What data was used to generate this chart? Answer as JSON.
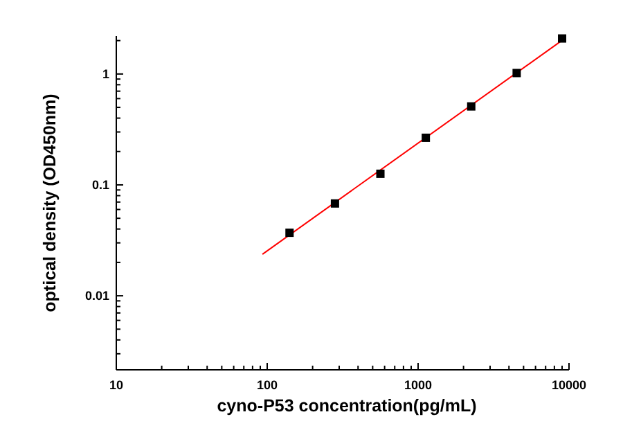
{
  "chart_data": {
    "type": "scatter",
    "xlabel": "cyno-P53 concentration(pg/mL)",
    "ylabel": "optical density (OD450nm)",
    "log": "xy",
    "xlim": [
      10,
      10000
    ],
    "ylim": [
      0.00215,
      2.2
    ],
    "xticks": [
      10,
      {
        "value": 20,
        "label": null
      },
      {
        "value": 30,
        "label": null
      },
      {
        "value": 40,
        "label": null
      },
      {
        "value": 50,
        "label": null
      },
      {
        "value": 60,
        "label": null
      },
      {
        "value": 70,
        "label": null
      },
      {
        "value": 80,
        "label": null
      },
      {
        "value": 90,
        "label": null
      },
      100,
      {
        "value": 200,
        "label": null
      },
      {
        "value": 300,
        "label": null
      },
      {
        "value": 400,
        "label": null
      },
      {
        "value": 500,
        "label": null
      },
      {
        "value": 600,
        "label": null
      },
      {
        "value": 700,
        "label": null
      },
      {
        "value": 800,
        "label": null
      },
      {
        "value": 900,
        "label": null
      },
      1000,
      {
        "value": 2000,
        "label": null
      },
      {
        "value": 3000,
        "label": null
      },
      {
        "value": 4000,
        "label": null
      },
      {
        "value": 5000,
        "label": null
      },
      {
        "value": 6000,
        "label": null
      },
      {
        "value": 7000,
        "label": null
      },
      {
        "value": 8000,
        "label": null
      },
      {
        "value": 9000,
        "label": null
      },
      10000
    ],
    "yticks": [
      {
        "value": 0.003,
        "label": null
      },
      {
        "value": 0.004,
        "label": null
      },
      {
        "value": 0.005,
        "label": null
      },
      {
        "value": 0.006,
        "label": null
      },
      {
        "value": 0.007,
        "label": null
      },
      {
        "value": 0.008,
        "label": null
      },
      {
        "value": 0.009,
        "label": null
      },
      0.01,
      {
        "value": 0.02,
        "label": null
      },
      {
        "value": 0.03,
        "label": null
      },
      {
        "value": 0.04,
        "label": null
      },
      {
        "value": 0.05,
        "label": null
      },
      {
        "value": 0.06,
        "label": null
      },
      {
        "value": 0.07,
        "label": null
      },
      {
        "value": 0.08,
        "label": null
      },
      {
        "value": 0.09,
        "label": null
      },
      0.1,
      {
        "value": 0.2,
        "label": null
      },
      {
        "value": 0.3,
        "label": null
      },
      {
        "value": 0.4,
        "label": null
      },
      {
        "value": 0.5,
        "label": null
      },
      {
        "value": 0.6,
        "label": null
      },
      {
        "value": 0.7,
        "label": null
      },
      {
        "value": 0.8,
        "label": null
      },
      {
        "value": 0.9,
        "label": null
      },
      1,
      {
        "value": 2,
        "label": null
      }
    ],
    "grid": false,
    "series": [
      {
        "type": "line",
        "color": "#ff0000",
        "marker": "none",
        "line_style": "solid",
        "x": [
          93,
          9500
        ],
        "values": [
          0.0237,
          2.12
        ]
      },
      {
        "color": "#000000",
        "marker": "square",
        "x": [
          140.6,
          281.25,
          562.5,
          1125,
          2250,
          4500,
          9000
        ],
        "values": [
          0.037,
          0.068,
          0.126,
          0.266,
          0.51,
          1.02,
          2.09
        ]
      }
    ]
  }
}
